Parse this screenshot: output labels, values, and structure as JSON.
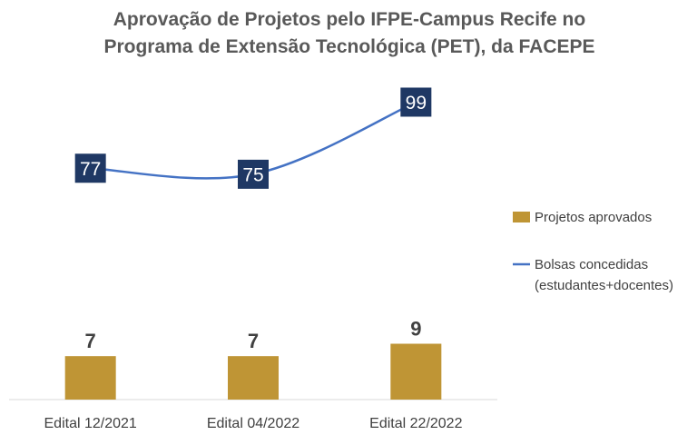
{
  "chart_data": {
    "type": "bar",
    "title_lines": [
      "Aprovação de Projetos pelo IFPE-Campus Recife no",
      "Programa de Extensão Tecnológica (PET), da FACEPE"
    ],
    "categories": [
      "Edital 12/2021",
      "Edital 04/2022",
      "Edital 22/2022"
    ],
    "series": [
      {
        "name": "Projetos aprovados",
        "type": "bar",
        "color": "#BF9535",
        "values": [
          7,
          7,
          9
        ],
        "labels": [
          "7",
          "7",
          "9"
        ]
      },
      {
        "name_lines": [
          "Bolsas concedidas",
          "(estudantes+docentes)"
        ],
        "type": "line",
        "color": "#4472C4",
        "label_bg": "#1F3864",
        "values": [
          77,
          75,
          99
        ],
        "labels": [
          "77",
          "75",
          "99"
        ]
      }
    ],
    "legend_position": "right",
    "grid": false
  }
}
